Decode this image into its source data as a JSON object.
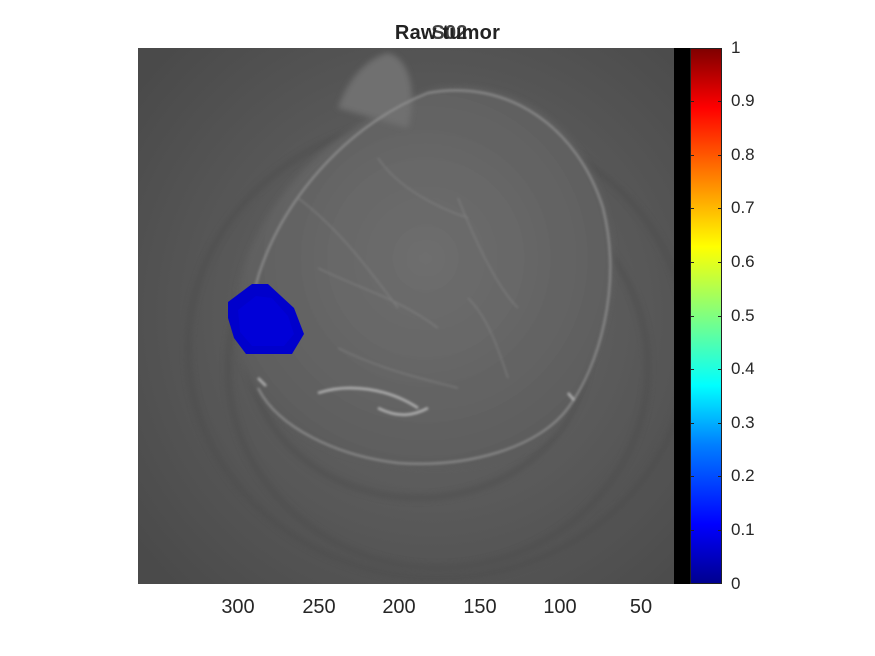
{
  "figure": {
    "title_layer_1": "Raw tumor",
    "title_layer_2": "S02"
  },
  "x_axis": {
    "tick_labels": [
      "300",
      "250",
      "200",
      "150",
      "100",
      "50"
    ]
  },
  "colorbar": {
    "colormap": "jet",
    "tick_labels": [
      "1",
      "0.9",
      "0.8",
      "0.7",
      "0.6",
      "0.5",
      "0.4",
      "0.3",
      "0.2",
      "0.1",
      "0"
    ],
    "range": [
      0,
      1
    ]
  },
  "overlay": {
    "tumor_color": "#0000cc"
  }
}
